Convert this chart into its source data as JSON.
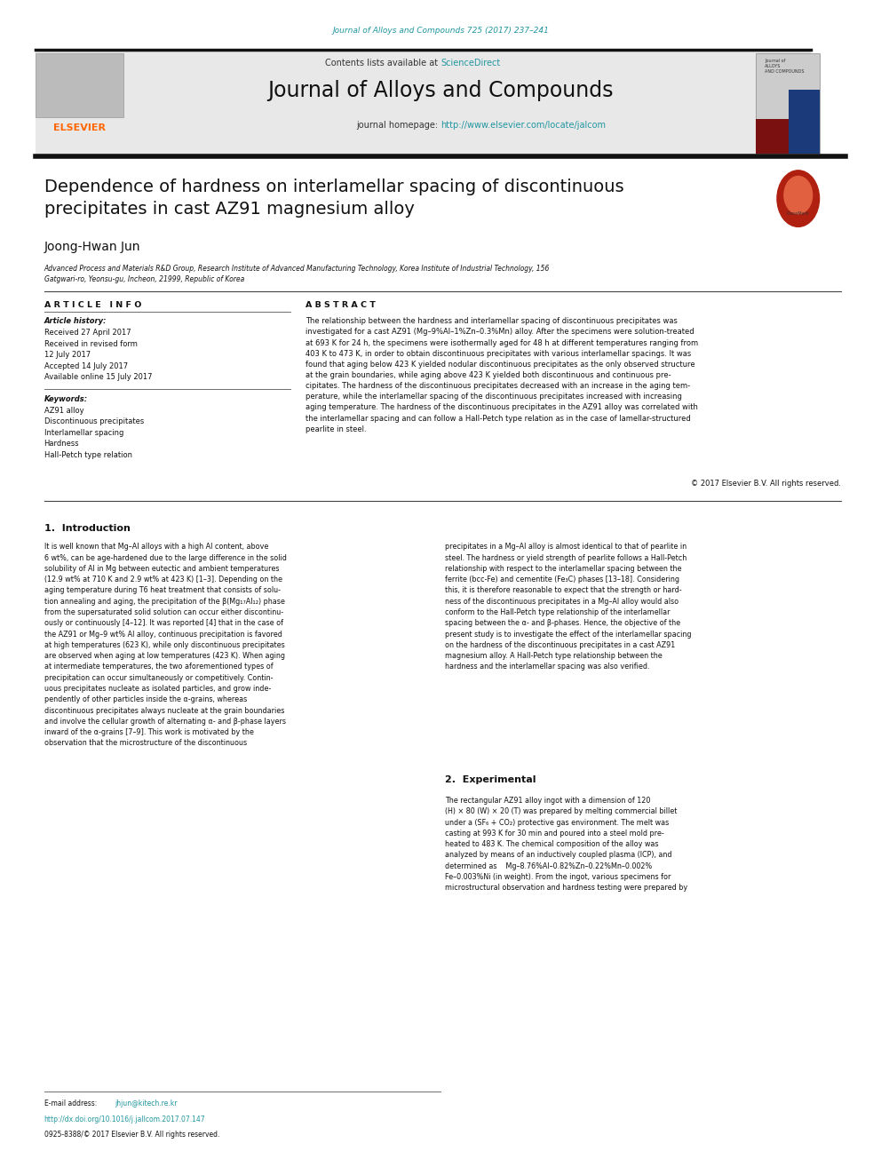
{
  "page_width": 9.92,
  "page_height": 13.23,
  "background_color": "#ffffff",
  "top_journal_ref": "Journal of Alloys and Compounds 725 (2017) 237–241",
  "top_journal_ref_color": "#2196a0",
  "header_bg_color": "#e8e8e8",
  "header_contents_text": "Contents lists available at ",
  "header_sciencedirect_text": "ScienceDirect",
  "header_sciencedirect_color": "#2196a0",
  "header_journal_name": "Journal of Alloys and Compounds",
  "header_homepage_text": "journal homepage: ",
  "header_homepage_url": "http://www.elsevier.com/locate/jalcom",
  "header_homepage_url_color": "#2196a0",
  "elsevier_color": "#ff6600",
  "black_bar_color": "#1a1a1a",
  "article_title": "Dependence of hardness on interlamellar spacing of discontinuous\nprecipitates in cast AZ91 magnesium alloy",
  "author_name": "Joong-Hwan Jun",
  "affiliation": "Advanced Process and Materials R&D Group, Research Institute of Advanced Manufacturing Technology, Korea Institute of Industrial Technology, 156\nGatgwari-ro, Yeonsu-gu, Incheon, 21999, Republic of Korea",
  "article_info_title": "A R T I C L E   I N F O",
  "abstract_title": "A B S T R A C T",
  "article_history_label": "Article history:",
  "article_history": "Received 27 April 2017\nReceived in revised form\n12 July 2017\nAccepted 14 July 2017\nAvailable online 15 July 2017",
  "keywords_label": "Keywords:",
  "keywords": "AZ91 alloy\nDiscontinuous precipitates\nInterlamellar spacing\nHardness\nHall-Petch type relation",
  "abstract_text": "The relationship between the hardness and interlamellar spacing of discontinuous precipitates was\ninvestigated for a cast AZ91 (Mg–9%Al–1%Zn–0.3%Mn) alloy. After the specimens were solution-treated\nat 693 K for 24 h, the specimens were isothermally aged for 48 h at different temperatures ranging from\n403 K to 473 K, in order to obtain discontinuous precipitates with various interlamellar spacings. It was\nfound that aging below 423 K yielded nodular discontinuous precipitates as the only observed structure\nat the grain boundaries, while aging above 423 K yielded both discontinuous and continuous pre-\ncipitates. The hardness of the discontinuous precipitates decreased with an increase in the aging tem-\nperature, while the interlamellar spacing of the discontinuous precipitates increased with increasing\naging temperature. The hardness of the discontinuous precipitates in the AZ91 alloy was correlated with\nthe interlamellar spacing and can follow a Hall-Petch type relation as in the case of lamellar-structured\npearlite in steel.",
  "copyright_text": "© 2017 Elsevier B.V. All rights reserved.",
  "section1_title": "1.  Introduction",
  "section1_left_text": "It is well known that Mg–Al alloys with a high Al content, above\n6 wt%, can be age-hardened due to the large difference in the solid\nsolubility of Al in Mg between eutectic and ambient temperatures\n(12.9 wt% at 710 K and 2.9 wt% at 423 K) [1–3]. Depending on the\naging temperature during T6 heat treatment that consists of solu-\ntion annealing and aging, the precipitation of the β(Mg₁₇Al₁₂) phase\nfrom the supersaturated solid solution can occur either discontinu-\nously or continuously [4–12]. It was reported [4] that in the case of\nthe AZ91 or Mg–9 wt% Al alloy, continuous precipitation is favored\nat high temperatures (623 K), while only discontinuous precipitates\nare observed when aging at low temperatures (423 K). When aging\nat intermediate temperatures, the two aforementioned types of\nprecipitation can occur simultaneously or competitively. Contin-\nuous precipitates nucleate as isolated particles, and grow inde-\npendently of other particles inside the α-grains, whereas\ndiscontinuous precipitates always nucleate at the grain boundaries\nand involve the cellular growth of alternating α- and β-phase layers\ninward of the α-grains [7–9]. This work is motivated by the\nobservation that the microstructure of the discontinuous",
  "section1_right_text": "precipitates in a Mg–Al alloy is almost identical to that of pearlite in\nsteel. The hardness or yield strength of pearlite follows a Hall-Petch\nrelationship with respect to the interlamellar spacing between the\nferrite (bcc-Fe) and cementite (Fe₃C) phases [13–18]. Considering\nthis, it is therefore reasonable to expect that the strength or hard-\nness of the discontinuous precipitates in a Mg–Al alloy would also\nconform to the Hall-Petch type relationship of the interlamellar\nspacing between the α- and β-phases. Hence, the objective of the\npresent study is to investigate the effect of the interlamellar spacing\non the hardness of the discontinuous precipitates in a cast AZ91\nmagnesium alloy. A Hall-Petch type relationship between the\nhardness and the interlamellar spacing was also verified.",
  "section2_title": "2.  Experimental",
  "section2_text": "The rectangular AZ91 alloy ingot with a dimension of 120\n(H) × 80 (W) × 20 (T) was prepared by melting commercial billet\nunder a (SF₆ + CO₂) protective gas environment. The melt was\ncasting at 993 K for 30 min and poured into a steel mold pre-\nheated to 483 K. The chemical composition of the alloy was\nanalyzed by means of an inductively coupled plasma (ICP), and\ndetermined as    Mg–8.76%Al–0.82%Zn–0.22%Mn–0.002%\nFe–0.003%Ni (in weight). From the ingot, various specimens for\nmicrostructural observation and hardness testing were prepared by",
  "email_label": "E-mail address: ",
  "email_address": "jhjun@kitech.re.kr",
  "doi_text": "http://dx.doi.org/10.1016/j.jallcom.2017.07.147",
  "issn_text": "0925-8388/© 2017 Elsevier B.V. All rights reserved."
}
